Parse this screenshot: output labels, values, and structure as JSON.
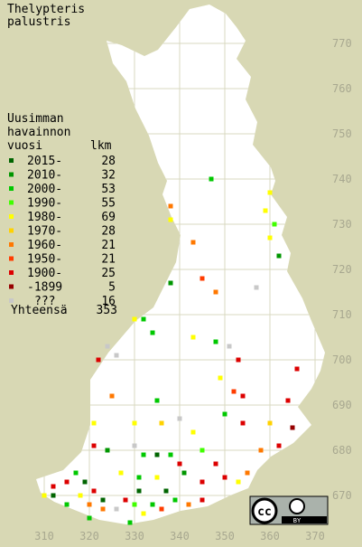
{
  "title": [
    "Thelypteris",
    "palustris"
  ],
  "legend": {
    "header": [
      "Uusimman",
      "havainnon",
      "vuosi"
    ],
    "count_header": "lkm",
    "rows": [
      {
        "label": "2015-",
        "count": 28,
        "color": "#006400",
        "x": [
          312,
          319,
          323,
          331,
          335,
          337
        ],
        "y": [
          670,
          673,
          669,
          671,
          679,
          671
        ]
      },
      {
        "label": "2010-",
        "count": 32,
        "color": "#009600",
        "x": [
          362,
          338,
          324,
          330,
          341
        ],
        "y": [
          723,
          717,
          680,
          668,
          675
        ]
      },
      {
        "label": "2000-",
        "count": 53,
        "color": "#00c800",
        "x": [
          347,
          332,
          334,
          348,
          335,
          350,
          332,
          338,
          317,
          331,
          315,
          334,
          339,
          320,
          329
        ],
        "y": [
          740,
          709,
          706,
          704,
          691,
          688,
          679,
          679,
          675,
          674,
          668,
          668,
          669,
          665,
          664
        ]
      },
      {
        "label": "1990-",
        "count": 55,
        "color": "#40ff00",
        "x": [
          361,
          345,
          330
        ],
        "y": [
          730,
          680,
          668
        ]
      },
      {
        "label": "1980-",
        "count": 69,
        "color": "#ffff00",
        "x": [
          360,
          359,
          338,
          360,
          330,
          343,
          353,
          349,
          321,
          330,
          343,
          353,
          327,
          335,
          310,
          318,
          332
        ],
        "y": [
          737,
          733,
          731,
          727,
          709,
          705,
          700,
          696,
          686,
          686,
          684,
          673,
          675,
          674,
          670,
          670,
          666
        ]
      },
      {
        "label": "1970-",
        "count": 28,
        "color": "#ffd200",
        "x": [
          360,
          336
        ],
        "y": [
          686,
          686
        ]
      },
      {
        "label": "1960-",
        "count": 21,
        "color": "#ff7800",
        "x": [
          338,
          343,
          348,
          325,
          358,
          355,
          320,
          342,
          323
        ],
        "y": [
          734,
          726,
          715,
          692,
          680,
          675,
          668,
          668,
          667
        ]
      },
      {
        "label": "1950-",
        "count": 21,
        "color": "#ff3c00",
        "x": [
          345,
          352,
          336
        ],
        "y": [
          718,
          693,
          667
        ]
      },
      {
        "label": "1900-",
        "count": 25,
        "color": "#dc0000",
        "x": [
          353,
          366,
          322,
          354,
          364,
          354,
          362,
          321,
          340,
          348,
          350,
          321,
          345,
          328,
          345,
          312,
          315
        ],
        "y": [
          700,
          698,
          700,
          692,
          691,
          686,
          681,
          681,
          677,
          677,
          674,
          671,
          673,
          669,
          669,
          672,
          673
        ]
      },
      {
        "label": "-1899",
        "count": 5,
        "color": "#960000",
        "x": [
          365
        ],
        "y": [
          685
        ]
      },
      {
        "label": "???",
        "count": 16,
        "color": "#c8c8c8",
        "x": [
          357,
          324,
          326,
          351,
          340,
          330,
          326
        ],
        "y": [
          716,
          703,
          701,
          703,
          687,
          681,
          667
        ]
      }
    ],
    "total_label": "Yhteensä",
    "total": 353
  },
  "xticks": [
    310,
    320,
    330,
    340,
    350,
    360,
    370
  ],
  "yticks": [
    670,
    680,
    690,
    700,
    710,
    720,
    730,
    740,
    750,
    760,
    770
  ],
  "badge": {
    "cc": "cc",
    "by": "BY"
  }
}
